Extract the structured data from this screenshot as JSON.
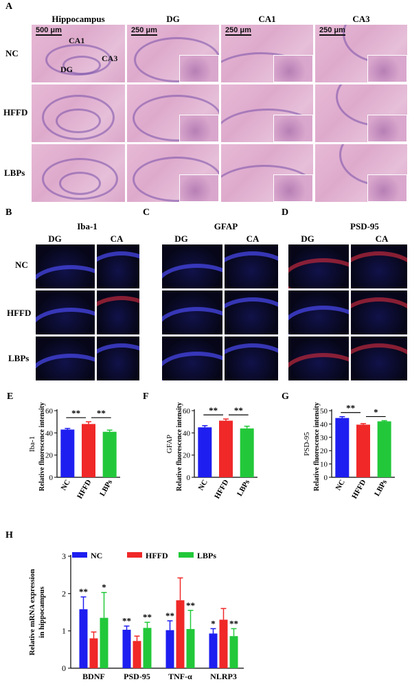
{
  "panel_letters": {
    "a": "A",
    "b": "B",
    "c": "C",
    "d": "D",
    "e": "E",
    "f": "F",
    "g": "G",
    "h": "H"
  },
  "panel_a": {
    "columns": [
      "Hippocampus",
      "DG",
      "CA1",
      "CA3"
    ],
    "rows": [
      "NC",
      "HFFD",
      "LBPs"
    ],
    "scale_bars": [
      "500 μm",
      "250 μm",
      "250 μm",
      "250 μm"
    ],
    "region_labels": [
      "CA1",
      "CA3",
      "DG"
    ]
  },
  "panel_b": {
    "title": "Iba-1",
    "cols": [
      "DG",
      "CA"
    ]
  },
  "panel_c": {
    "title": "GFAP",
    "cols": [
      "DG",
      "CA"
    ]
  },
  "panel_d": {
    "title": "PSD-95",
    "cols": [
      "DG",
      "CA"
    ]
  },
  "fluor_rows": [
    "NC",
    "HFFD",
    "LBPs"
  ],
  "colors": {
    "NC": "#1e1ef0",
    "HFFD": "#f02828",
    "LBPs": "#22c83a"
  },
  "chart_data": [
    {
      "type": "bar",
      "panel": "E",
      "title": "",
      "ylabel_top": "Iba-1",
      "ylabel": "Relative fluorescence intensity",
      "categories": [
        "NC",
        "HFFD",
        "LBPs"
      ],
      "values": [
        43,
        48,
        41
      ],
      "errors": [
        1,
        2,
        1.5
      ],
      "ylim": [
        0,
        60
      ],
      "yticks": [
        0,
        20,
        40,
        60
      ],
      "significance": [
        {
          "from": 0,
          "to": 1,
          "label": "**"
        },
        {
          "from": 1,
          "to": 2,
          "label": "**"
        }
      ]
    },
    {
      "type": "bar",
      "panel": "F",
      "title": "",
      "ylabel_top": "GFAP",
      "ylabel": "Relative fluorescence intensity",
      "categories": [
        "NC",
        "HFFD",
        "LBPs"
      ],
      "values": [
        45,
        51,
        44
      ],
      "errors": [
        1.5,
        1.5,
        2
      ],
      "ylim": [
        0,
        60
      ],
      "yticks": [
        0,
        20,
        40,
        60
      ],
      "significance": [
        {
          "from": 0,
          "to": 1,
          "label": "**"
        },
        {
          "from": 1,
          "to": 2,
          "label": "**"
        }
      ]
    },
    {
      "type": "bar",
      "panel": "G",
      "title": "",
      "ylabel_top": "PSD-95",
      "ylabel": "Relative fluorescence intensity",
      "categories": [
        "NC",
        "HFFD",
        "LBPs"
      ],
      "values": [
        44.5,
        39.5,
        42
      ],
      "errors": [
        1,
        0.8,
        0.5
      ],
      "ylim": [
        0,
        50
      ],
      "yticks": [
        0,
        10,
        20,
        30,
        40,
        50
      ],
      "significance": [
        {
          "from": 0,
          "to": 1,
          "label": "**"
        },
        {
          "from": 1,
          "to": 2,
          "label": "*"
        }
      ]
    },
    {
      "type": "bar",
      "panel": "H",
      "title": "",
      "ylabel": "Relative mRNA expression in hippocampus",
      "categories": [
        "BDNF",
        "PSD-95",
        "TNF-α",
        "NLRP3"
      ],
      "ylim": [
        0,
        3
      ],
      "yticks": [
        0,
        1,
        2,
        3
      ],
      "legend": "top",
      "series": [
        {
          "name": "NC",
          "values": [
            1.58,
            1.03,
            1.02,
            0.93
          ],
          "errors": [
            0.33,
            0.1,
            0.25,
            0.13
          ],
          "labels": [
            "**",
            "**",
            "**",
            "*"
          ]
        },
        {
          "name": "HFFD",
          "values": [
            0.8,
            0.73,
            1.82,
            1.3
          ],
          "errors": [
            0.17,
            0.13,
            0.6,
            0.3
          ],
          "labels": [
            "",
            "",
            "",
            ""
          ]
        },
        {
          "name": "LBPs",
          "values": [
            1.35,
            1.08,
            1.05,
            0.86
          ],
          "errors": [
            0.68,
            0.15,
            0.5,
            0.2
          ],
          "labels": [
            "*",
            "**",
            "**",
            "**"
          ]
        }
      ]
    }
  ]
}
